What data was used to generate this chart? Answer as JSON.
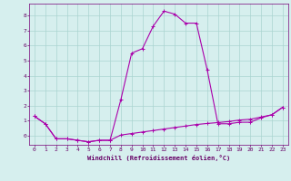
{
  "title": "",
  "xlabel": "Windchill (Refroidissement éolien,°C)",
  "background_color": "#d6efee",
  "grid_color": "#aad4d0",
  "line_color": "#aa00aa",
  "xlim": [
    -0.5,
    23.5
  ],
  "ylim": [
    -0.6,
    8.8
  ],
  "xticks": [
    0,
    1,
    2,
    3,
    4,
    5,
    6,
    7,
    8,
    9,
    10,
    11,
    12,
    13,
    14,
    15,
    16,
    17,
    18,
    19,
    20,
    21,
    22,
    23
  ],
  "yticks": [
    0,
    1,
    2,
    3,
    4,
    5,
    6,
    7,
    8
  ],
  "series1_x": [
    0,
    1,
    2,
    3,
    4,
    5,
    6,
    7,
    8,
    9,
    10,
    11,
    12,
    13,
    14,
    15,
    16,
    17,
    18,
    19,
    20,
    21,
    22,
    23
  ],
  "series1_y": [
    1.3,
    0.8,
    -0.2,
    -0.2,
    -0.3,
    -0.4,
    -0.3,
    -0.3,
    2.4,
    5.5,
    5.8,
    7.3,
    8.3,
    8.1,
    7.5,
    7.5,
    4.4,
    0.8,
    0.8,
    0.9,
    0.9,
    1.2,
    1.4,
    1.9
  ],
  "series2_x": [
    0,
    1,
    2,
    3,
    4,
    5,
    6,
    7,
    8,
    9,
    10,
    11,
    12,
    13,
    14,
    15,
    16,
    17,
    18,
    19,
    20,
    21,
    22,
    23
  ],
  "series2_y": [
    1.3,
    0.8,
    -0.2,
    -0.2,
    -0.3,
    -0.4,
    -0.3,
    -0.3,
    0.05,
    0.15,
    0.25,
    0.35,
    0.45,
    0.55,
    0.65,
    0.75,
    0.82,
    0.88,
    0.95,
    1.05,
    1.1,
    1.25,
    1.4,
    1.9
  ]
}
